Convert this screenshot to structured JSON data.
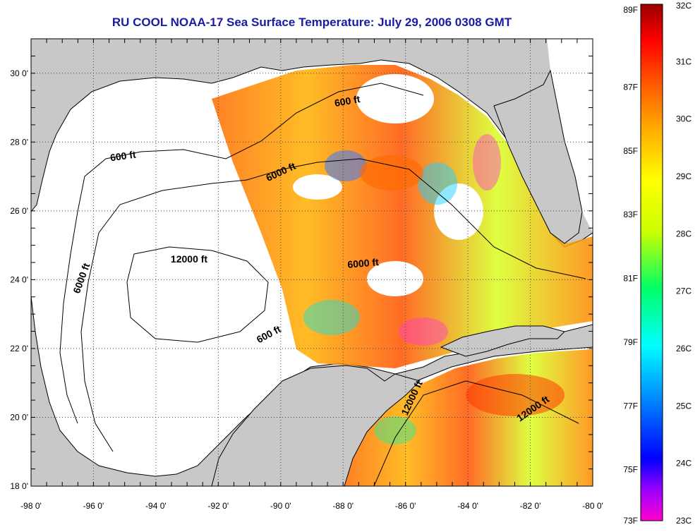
{
  "title": "RU COOL  NOAA-17  Sea Surface Temperature:  July 29, 2006 0308 GMT",
  "map": {
    "lon_range": [
      -98,
      -80
    ],
    "lat_range": [
      18,
      31
    ],
    "lon_ticks": [
      "-98 0'",
      "-96 0'",
      "-94 0'",
      "-92 0'",
      "-90 0'",
      "-88 0'",
      "-86 0'",
      "-84 0'",
      "-82 0'",
      "-80 0'"
    ],
    "lat_ticks": [
      "18 0'",
      "20 0'",
      "22 0'",
      "24 0'",
      "26 0'",
      "28 0'",
      "30 0'"
    ],
    "grid": true,
    "colors": {
      "land": "#c8c8c8",
      "no_data": "#ffffff",
      "coast": "#000000"
    },
    "contour_labels": [
      {
        "text": "600 ft"
      },
      {
        "text": "6000 ft"
      },
      {
        "text": "12000 ft"
      },
      {
        "text": "600 ft"
      },
      {
        "text": "600 ft"
      },
      {
        "text": "6000 ft"
      },
      {
        "text": "6000 ft"
      },
      {
        "text": "12000 ft"
      },
      {
        "text": "12000 ft"
      }
    ]
  },
  "colorbar": {
    "fahrenheit_labels": [
      "89F",
      "87F",
      "85F",
      "83F",
      "81F",
      "79F",
      "77F",
      "75F",
      "73F"
    ],
    "celsius_labels": [
      "32C",
      "31C",
      "30C",
      "29C",
      "28C",
      "27C",
      "26C",
      "25C",
      "24C",
      "23C"
    ],
    "range_c": [
      23,
      32
    ],
    "colors": [
      "#ff00cc",
      "#9900ff",
      "#0000ff",
      "#0099ff",
      "#00ffff",
      "#00ff66",
      "#ccff00",
      "#ffff00",
      "#ffaa00",
      "#ff5500",
      "#ff0000",
      "#990000"
    ]
  }
}
